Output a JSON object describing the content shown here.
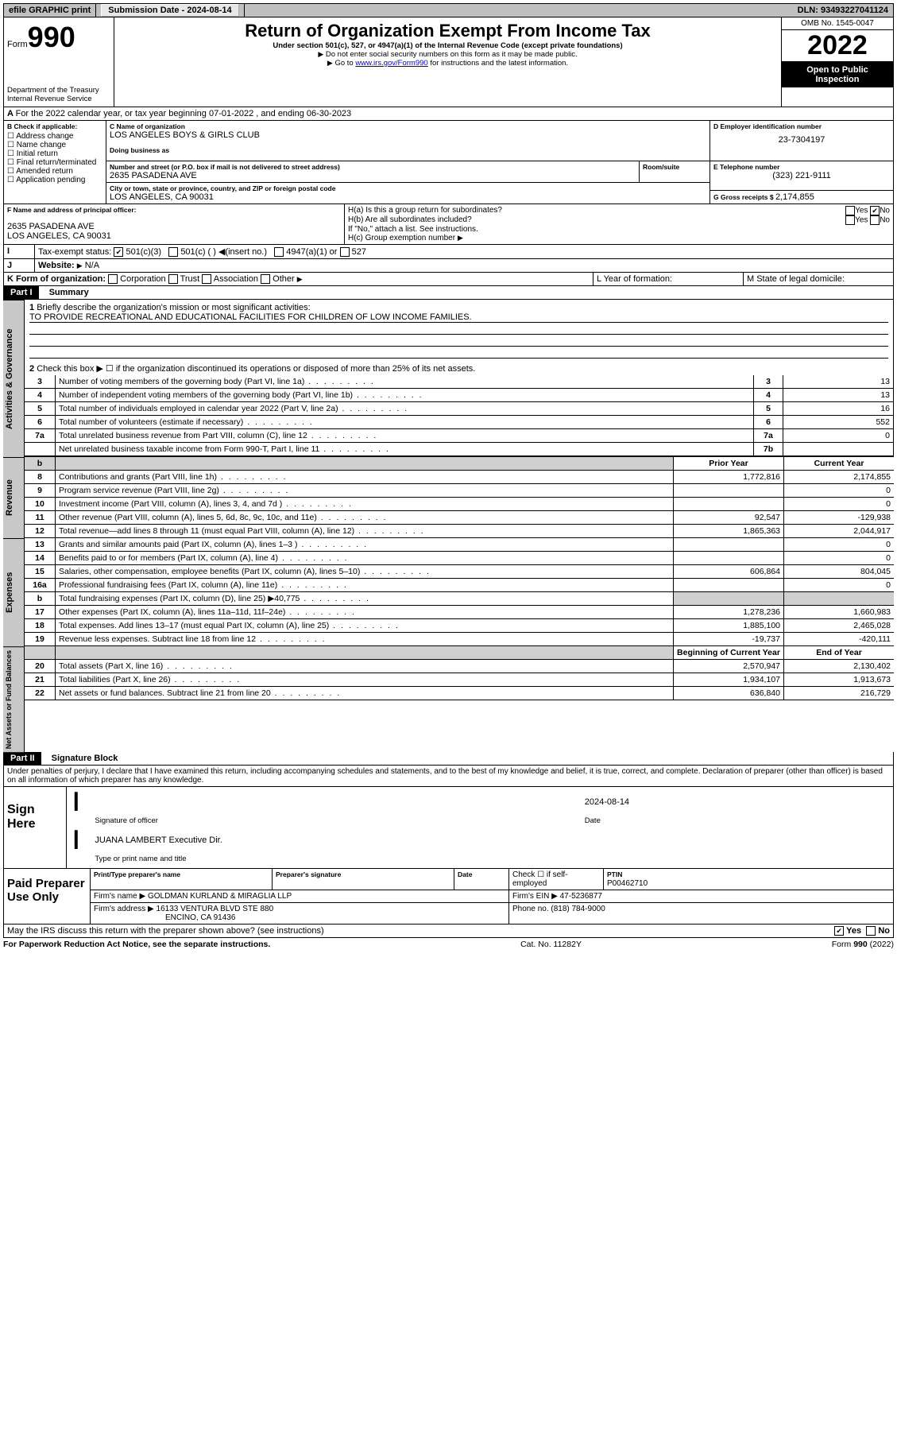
{
  "topbar": {
    "efile": "efile GRAPHIC print",
    "subdate_label": "Submission Date - ",
    "subdate": "2024-08-14",
    "dln_label": "DLN: ",
    "dln": "93493227041124"
  },
  "header": {
    "form_label": "Form",
    "form_num": "990",
    "dept": "Department of the Treasury",
    "irs": "Internal Revenue Service",
    "title": "Return of Organization Exempt From Income Tax",
    "sub1": "Under section 501(c), 527, or 4947(a)(1) of the Internal Revenue Code (except private foundations)",
    "sub2": "Do not enter social security numbers on this form as it may be made public.",
    "sub3_pre": "Go to ",
    "sub3_link": "www.irs.gov/Form990",
    "sub3_post": " for instructions and the latest information.",
    "omb": "OMB No. 1545-0047",
    "year": "2022",
    "open": "Open to Public Inspection"
  },
  "sectionA": {
    "line": "For the 2022 calendar year, or tax year beginning 07-01-2022    , and ending 06-30-2023",
    "b_label": "B Check if applicable:",
    "b_items": [
      "Address change",
      "Name change",
      "Initial return",
      "Final return/terminated",
      "Amended return",
      "Application pending"
    ],
    "c_label": "C Name of organization",
    "c_name": "LOS ANGELES BOYS & GIRLS CLUB",
    "dba_label": "Doing business as",
    "addr_label": "Number and street (or P.O. box if mail is not delivered to street address)",
    "room_label": "Room/suite",
    "addr": "2635 PASADENA AVE",
    "city_label": "City or town, state or province, country, and ZIP or foreign postal code",
    "city": "LOS ANGELES, CA  90031",
    "d_label": "D Employer identification number",
    "d_val": "23-7304197",
    "e_label": "E Telephone number",
    "e_val": "(323) 221-9111",
    "g_label": "G Gross receipts $ ",
    "g_val": "2,174,855",
    "f_label": "F  Name and address of principal officer:",
    "f_addr1": "2635 PASADENA AVE",
    "f_addr2": "LOS ANGELES, CA  90031",
    "ha": "H(a)  Is this a group return for subordinates?",
    "hb": "H(b)  Are all subordinates included?",
    "h_note": "If \"No,\" attach a list. See instructions.",
    "hc": "H(c)  Group exemption number",
    "i_label": "Tax-exempt status:",
    "i_1": "501(c)(3)",
    "i_2": "501(c) (  )",
    "i_2b": "(insert no.)",
    "i_3": "4947(a)(1) or",
    "i_4": "527",
    "j_label": "Website:",
    "j_val": "N/A",
    "k_label": "K Form of organization:",
    "k_items": [
      "Corporation",
      "Trust",
      "Association",
      "Other"
    ],
    "l_label": "L Year of formation:",
    "m_label": "M State of legal domicile:",
    "yes": "Yes",
    "no": "No"
  },
  "part1": {
    "hdr": "Part I",
    "title": "Summary",
    "line1": "Briefly describe the organization's mission or most significant activities:",
    "mission": "TO PROVIDE RECREATIONAL AND EDUCATIONAL FACILITIES FOR CHILDREN OF LOW INCOME FAMILIES.",
    "line2": "Check this box ▶ ☐ if the organization discontinued its operations or disposed of more than 25% of its net assets.",
    "rows_gov": [
      {
        "n": "3",
        "t": "Number of voting members of the governing body (Part VI, line 1a)",
        "b": "3",
        "v": "13"
      },
      {
        "n": "4",
        "t": "Number of independent voting members of the governing body (Part VI, line 1b)",
        "b": "4",
        "v": "13"
      },
      {
        "n": "5",
        "t": "Total number of individuals employed in calendar year 2022 (Part V, line 2a)",
        "b": "5",
        "v": "16"
      },
      {
        "n": "6",
        "t": "Total number of volunteers (estimate if necessary)",
        "b": "6",
        "v": "552"
      },
      {
        "n": "7a",
        "t": "Total unrelated business revenue from Part VIII, column (C), line 12",
        "b": "7a",
        "v": "0"
      },
      {
        "n": "",
        "t": "Net unrelated business taxable income from Form 990-T, Part I, line 11",
        "b": "7b",
        "v": ""
      }
    ],
    "prior": "Prior Year",
    "current": "Current Year",
    "rev": [
      {
        "n": "8",
        "t": "Contributions and grants (Part VIII, line 1h)",
        "p": "1,772,816",
        "c": "2,174,855"
      },
      {
        "n": "9",
        "t": "Program service revenue (Part VIII, line 2g)",
        "p": "",
        "c": "0"
      },
      {
        "n": "10",
        "t": "Investment income (Part VIII, column (A), lines 3, 4, and 7d )",
        "p": "",
        "c": "0"
      },
      {
        "n": "11",
        "t": "Other revenue (Part VIII, column (A), lines 5, 6d, 8c, 9c, 10c, and 11e)",
        "p": "92,547",
        "c": "-129,938"
      },
      {
        "n": "12",
        "t": "Total revenue—add lines 8 through 11 (must equal Part VIII, column (A), line 12)",
        "p": "1,865,363",
        "c": "2,044,917"
      }
    ],
    "exp": [
      {
        "n": "13",
        "t": "Grants and similar amounts paid (Part IX, column (A), lines 1–3 )",
        "p": "",
        "c": "0"
      },
      {
        "n": "14",
        "t": "Benefits paid to or for members (Part IX, column (A), line 4)",
        "p": "",
        "c": "0"
      },
      {
        "n": "15",
        "t": "Salaries, other compensation, employee benefits (Part IX, column (A), lines 5–10)",
        "p": "606,864",
        "c": "804,045"
      },
      {
        "n": "16a",
        "t": "Professional fundraising fees (Part IX, column (A), line 11e)",
        "p": "",
        "c": "0"
      },
      {
        "n": "b",
        "t": "Total fundraising expenses (Part IX, column (D), line 25) ▶40,775",
        "p": "",
        "c": "",
        "shade": true
      },
      {
        "n": "17",
        "t": "Other expenses (Part IX, column (A), lines 11a–11d, 11f–24e)",
        "p": "1,278,236",
        "c": "1,660,983"
      },
      {
        "n": "18",
        "t": "Total expenses. Add lines 13–17 (must equal Part IX, column (A), line 25)",
        "p": "1,885,100",
        "c": "2,465,028"
      },
      {
        "n": "19",
        "t": "Revenue less expenses. Subtract line 18 from line 12",
        "p": "-19,737",
        "c": "-420,111"
      }
    ],
    "boy": "Beginning of Current Year",
    "eoy": "End of Year",
    "net": [
      {
        "n": "20",
        "t": "Total assets (Part X, line 16)",
        "p": "2,570,947",
        "c": "2,130,402"
      },
      {
        "n": "21",
        "t": "Total liabilities (Part X, line 26)",
        "p": "1,934,107",
        "c": "1,913,673"
      },
      {
        "n": "22",
        "t": "Net assets or fund balances. Subtract line 21 from line 20",
        "p": "636,840",
        "c": "216,729"
      }
    ],
    "tabs": {
      "gov": "Activities & Governance",
      "rev": "Revenue",
      "exp": "Expenses",
      "net": "Net Assets or Fund Balances"
    }
  },
  "part2": {
    "hdr": "Part II",
    "title": "Signature Block",
    "decl": "Under penalties of perjury, I declare that I have examined this return, including accompanying schedules and statements, and to the best of my knowledge and belief, it is true, correct, and complete. Declaration of preparer (other than officer) is based on all information of which preparer has any knowledge.",
    "sign_here": "Sign Here",
    "sig_officer": "Signature of officer",
    "sig_date": "Date",
    "sig_date_val": "2024-08-14",
    "officer_name": "JUANA LAMBERT Executive Dir.",
    "type_name": "Type or print name and title",
    "paid": "Paid Preparer Use Only",
    "pp_name_lbl": "Print/Type preparer's name",
    "pp_sig_lbl": "Preparer's signature",
    "pp_date_lbl": "Date",
    "pp_check": "Check ☐ if self-employed",
    "ptin_lbl": "PTIN",
    "ptin": "P00462710",
    "firm_name_lbl": "Firm's name   ▶",
    "firm_name": "GOLDMAN KURLAND & MIRAGLIA LLP",
    "firm_ein_lbl": "Firm's EIN ▶",
    "firm_ein": "47-5236877",
    "firm_addr_lbl": "Firm's address ▶",
    "firm_addr1": "16133 VENTURA BLVD STE 880",
    "firm_addr2": "ENCINO, CA  91436",
    "phone_lbl": "Phone no. ",
    "phone": "(818) 784-9000",
    "discuss": "May the IRS discuss this return with the preparer shown above? (see instructions)"
  },
  "footer": {
    "left": "For Paperwork Reduction Act Notice, see the separate instructions.",
    "mid": "Cat. No. 11282Y",
    "right": "Form 990 (2022)"
  }
}
